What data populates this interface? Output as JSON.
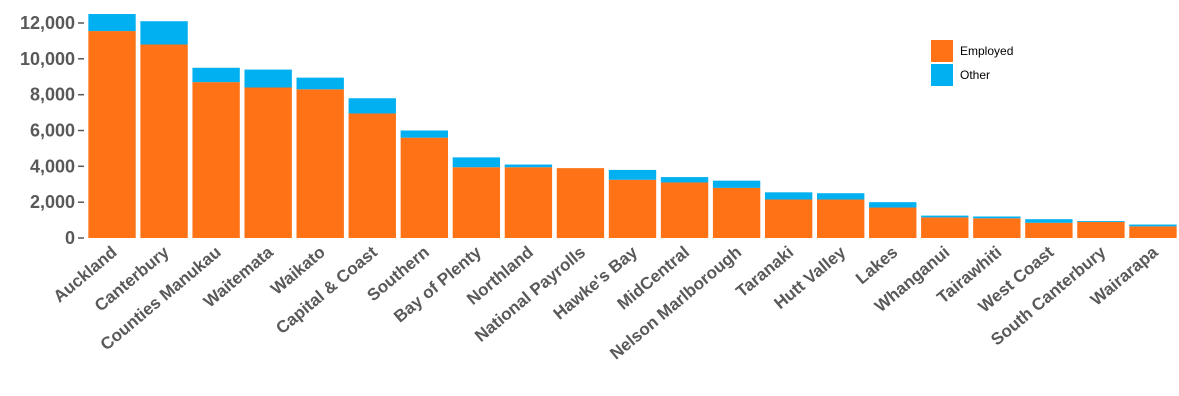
{
  "chart_data": {
    "type": "bar",
    "stacked": true,
    "title": "",
    "xlabel": "",
    "ylabel": "",
    "ylim": [
      0,
      12500
    ],
    "y_ticks": [
      0,
      2000,
      4000,
      6000,
      8000,
      10000,
      12000
    ],
    "y_tick_labels": [
      "0",
      "2,000",
      "4,000",
      "6,000",
      "8,000",
      "10,000",
      "12,000"
    ],
    "grid": false,
    "legend_position": "top-right",
    "categories": [
      "Auckland",
      "Canterbury",
      "Counties Manukau",
      "Waitemata",
      "Waikato",
      "Capital & Coast",
      "Southern",
      "Bay of Plenty",
      "Northland",
      "National Payrolls",
      "Hawke's Bay",
      "MidCentral",
      "Nelson Marlborough",
      "Taranaki",
      "Hutt Valley",
      "Lakes",
      "Whanganui",
      "Tairawhiti",
      "West Coast",
      "South Canterbury",
      "Wairarapa"
    ],
    "series": [
      {
        "name": "Employed",
        "color": "#FF7216",
        "values": [
          11550,
          10800,
          8700,
          8400,
          8300,
          6950,
          5600,
          3950,
          3950,
          3900,
          3250,
          3100,
          2800,
          2150,
          2150,
          1700,
          1150,
          1100,
          850,
          900,
          650
        ]
      },
      {
        "name": "Other",
        "color": "#00B0F0",
        "values": [
          950,
          1300,
          800,
          1000,
          650,
          850,
          400,
          550,
          150,
          0,
          550,
          300,
          400,
          400,
          350,
          300,
          100,
          100,
          200,
          50,
          100
        ]
      }
    ]
  }
}
